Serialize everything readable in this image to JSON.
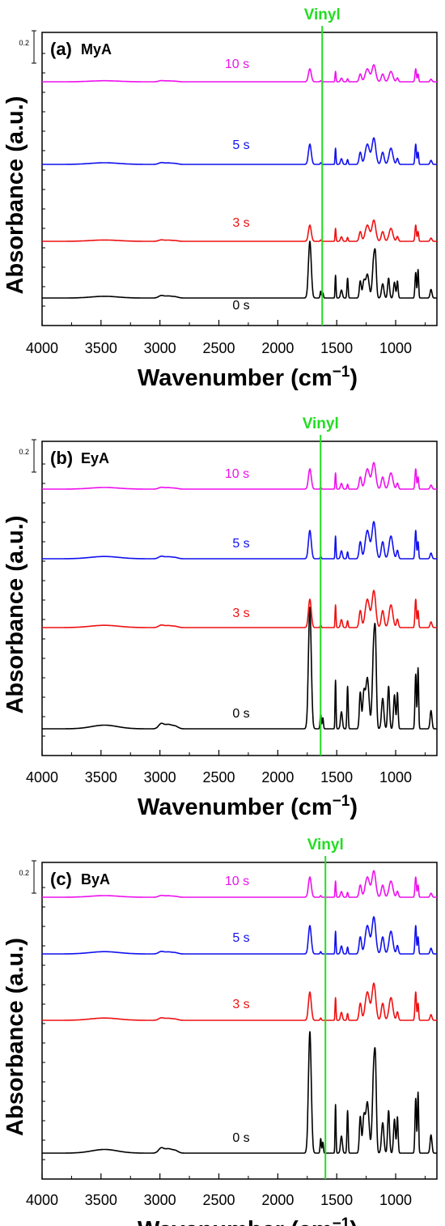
{
  "chart_data": [
    {
      "type": "line",
      "panel_label": "(a)",
      "sample": "MyA",
      "xlabel": "Wavenumber (cm",
      "xlabel_sup": "−1",
      "xlabel_close": ")",
      "ylabel": "Absorbance (a.u.)",
      "xlim": [
        4000,
        650
      ],
      "x_reversed": true,
      "x_ticks": [
        4000,
        3500,
        3000,
        2500,
        2000,
        1500,
        1000
      ],
      "scale_bar": {
        "label": "0.2",
        "value": 0.2
      },
      "marker": {
        "label": "Vinyl",
        "x": 1637,
        "color": "#22dd22"
      },
      "series": [
        {
          "name": "0 s",
          "color": "#000000",
          "baseline": 0.0,
          "scale": 1.0
        },
        {
          "name": "3 s",
          "color": "#ee1111",
          "baseline": 0.31,
          "scale": 0.5
        },
        {
          "name": "5 s",
          "color": "#1111ee",
          "baseline": 0.52,
          "scale": 0.53
        },
        {
          "name": "10 s",
          "color": "#ee11ee",
          "baseline": 0.73,
          "scale": 0.4
        }
      ]
    },
    {
      "type": "line",
      "panel_label": "(b)",
      "sample": "EyA",
      "xlabel": "Wavenumber (cm",
      "xlabel_sup": "−1",
      "xlabel_close": ")",
      "ylabel": "Absorbance (a.u.)",
      "xlim": [
        4000,
        650
      ],
      "x_reversed": true,
      "x_ticks": [
        4000,
        3500,
        3000,
        2500,
        2000,
        1500,
        1000
      ],
      "scale_bar": {
        "label": "0.2",
        "value": 0.2
      },
      "marker": {
        "label": "Vinyl",
        "x": 1637,
        "color": "#22dd22"
      },
      "series": [
        {
          "name": "0 s",
          "color": "#000000",
          "baseline": 0.0,
          "scale": 1.0
        },
        {
          "name": "3 s",
          "color": "#ee1111",
          "baseline": 0.33,
          "scale": 0.45
        },
        {
          "name": "5 s",
          "color": "#1111ee",
          "baseline": 0.5,
          "scale": 0.47
        },
        {
          "name": "10 s",
          "color": "#ee11ee",
          "baseline": 0.69,
          "scale": 0.43
        }
      ]
    },
    {
      "type": "line",
      "panel_label": "(c)",
      "sample": "ByA",
      "xlabel": "Wavenumber (cm",
      "xlabel_sup": "−1",
      "xlabel_close": ")",
      "ylabel": "Absorbance (a.u.)",
      "xlim": [
        4000,
        650
      ],
      "x_reversed": true,
      "x_ticks": [
        4000,
        3500,
        3000,
        2500,
        2000,
        1500,
        1000
      ],
      "scale_bar": {
        "label": "0.2",
        "value": 0.2
      },
      "marker": {
        "label": "Vinyl",
        "x": 1637,
        "color": "#22dd22"
      },
      "series": [
        {
          "name": "0 s",
          "color": "#000000",
          "baseline": 0.0,
          "scale": 1.0
        },
        {
          "name": "3 s",
          "color": "#ee1111",
          "baseline": 0.36,
          "scale": 0.36
        },
        {
          "name": "5 s",
          "color": "#1111ee",
          "baseline": 0.52,
          "scale": 0.36
        },
        {
          "name": "10 s",
          "color": "#ee11ee",
          "baseline": 0.67,
          "scale": 0.36
        }
      ]
    }
  ]
}
